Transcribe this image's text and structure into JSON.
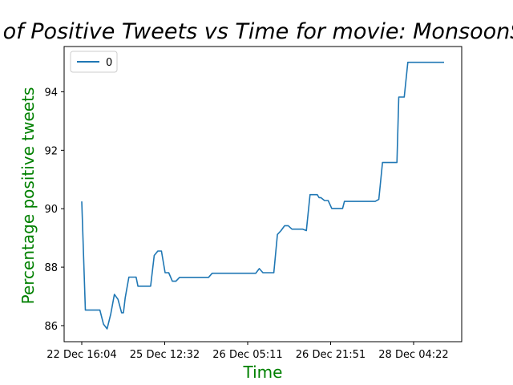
{
  "chart_data": {
    "type": "line",
    "title": "Percentage of Positive Tweets vs Time for movie: MonsoonShootout",
    "xlabel": "Time",
    "ylabel": "Percentage positive tweets",
    "x_tick_labels": [
      "22 Dec 16:04",
      "25 Dec 12:32",
      "26 Dec 05:11",
      "26 Dec 21:51",
      "28 Dec 04:22"
    ],
    "y_ticks": [
      86,
      88,
      90,
      92,
      94
    ],
    "ylim": [
      85.45,
      95.55
    ],
    "grid": false,
    "legend_position": "upper-left",
    "series": [
      {
        "name": "0",
        "color": "#1f77b4",
        "x": [
          0.0,
          0.01,
          0.04,
          0.05,
          0.06,
          0.07,
          0.08,
          0.09,
          0.1,
          0.11,
          0.115,
          0.12,
          0.13,
          0.14,
          0.145,
          0.15,
          0.155,
          0.16,
          0.17,
          0.18,
          0.19,
          0.2,
          0.21,
          0.22,
          0.23,
          0.235,
          0.24,
          0.25,
          0.26,
          0.27,
          0.28,
          0.29,
          0.3,
          0.31,
          0.32,
          0.33,
          0.34,
          0.35,
          0.36,
          0.37,
          0.38,
          0.39,
          0.4,
          0.41,
          0.42,
          0.43,
          0.44,
          0.45,
          0.46,
          0.47,
          0.48,
          0.49,
          0.5,
          0.51,
          0.52,
          0.53,
          0.54,
          0.55,
          0.56,
          0.57,
          0.58,
          0.59,
          0.6,
          0.61,
          0.62,
          0.63,
          0.64,
          0.645,
          0.65,
          0.655,
          0.66,
          0.67,
          0.68,
          0.69,
          0.7,
          0.71,
          0.72,
          0.725,
          0.73,
          0.74,
          0.75,
          0.76,
          0.77,
          0.78,
          0.79,
          0.8,
          0.81,
          0.82,
          0.83,
          0.84,
          0.85,
          0.86,
          0.87,
          0.875,
          0.88,
          0.89,
          0.9,
          0.91,
          0.92,
          0.93,
          0.94,
          0.95,
          0.96,
          0.97,
          0.98,
          0.99,
          1.0
        ],
        "y": [
          90.25,
          86.53,
          86.53,
          86.53,
          86.05,
          85.89,
          86.4,
          87.07,
          86.9,
          86.44,
          86.44,
          86.95,
          87.66,
          87.66,
          87.66,
          87.66,
          87.35,
          87.35,
          87.35,
          87.35,
          87.35,
          88.4,
          88.55,
          88.55,
          87.81,
          87.81,
          87.81,
          87.52,
          87.52,
          87.65,
          87.65,
          87.65,
          87.65,
          87.65,
          87.65,
          87.65,
          87.65,
          87.65,
          87.79,
          87.79,
          87.79,
          87.79,
          87.79,
          87.79,
          87.79,
          87.79,
          87.79,
          87.79,
          87.79,
          87.79,
          87.79,
          87.95,
          87.81,
          87.81,
          87.81,
          87.81,
          89.12,
          89.25,
          89.42,
          89.42,
          89.3,
          89.3,
          89.3,
          89.3,
          89.25,
          90.48,
          90.48,
          90.48,
          90.48,
          90.38,
          90.38,
          90.28,
          90.28,
          90.01,
          90.01,
          90.01,
          90.01,
          90.25,
          90.25,
          90.25,
          90.25,
          90.25,
          90.25,
          90.25,
          90.25,
          90.25,
          90.25,
          90.32,
          91.58,
          91.58,
          91.58,
          91.58,
          91.58,
          93.82,
          93.82,
          93.82,
          95.01,
          95.01,
          95.01,
          95.01,
          95.01,
          95.01,
          95.01,
          95.01,
          95.01,
          95.01,
          95.01
        ]
      }
    ]
  }
}
